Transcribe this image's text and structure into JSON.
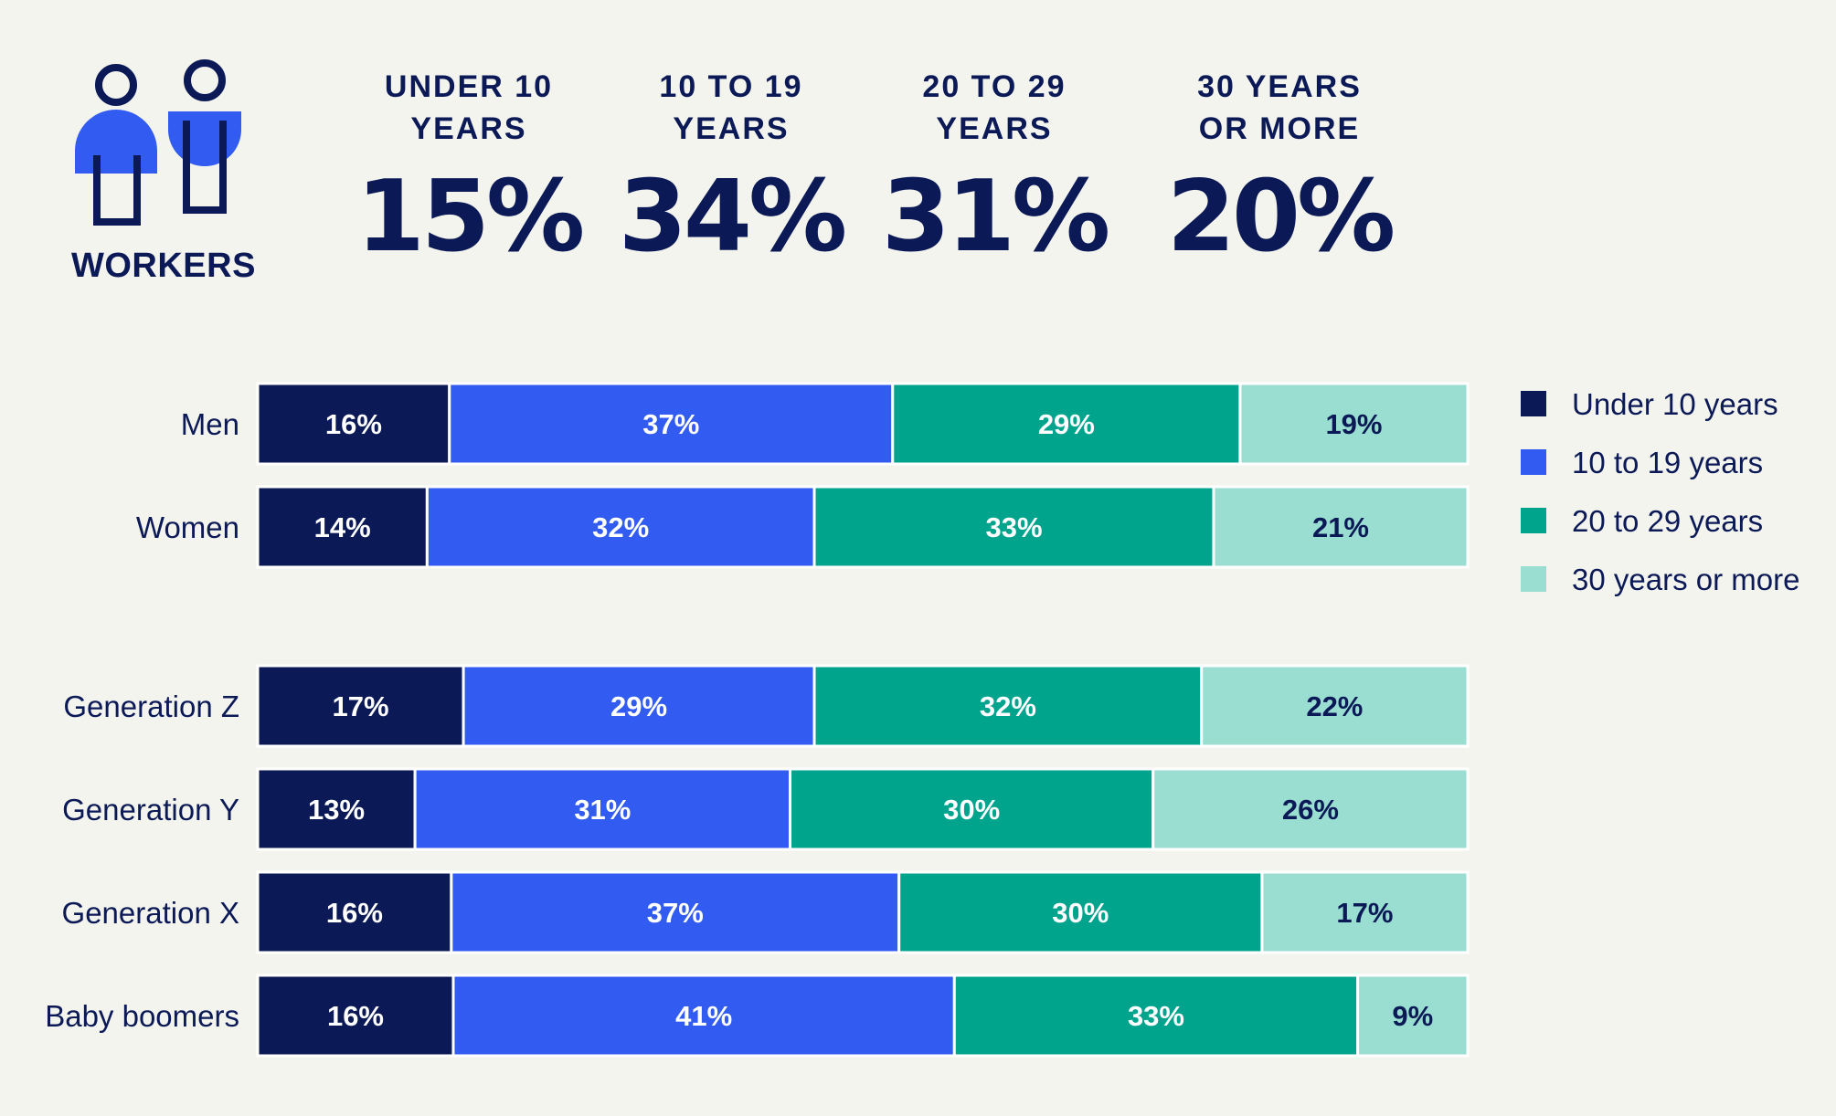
{
  "header": {
    "workers_label": "WORKERS",
    "stats": [
      {
        "label": "UNDER 10 YEARS",
        "value": "15%"
      },
      {
        "label": "10 TO 19 YEARS",
        "value": "34%"
      },
      {
        "label": "20 TO 29 YEARS",
        "value": "31%"
      },
      {
        "label": "30 YEARS OR MORE",
        "value": "20%"
      }
    ]
  },
  "legend": [
    {
      "label": "Under 10 years",
      "color": "#0b1a56"
    },
    {
      "label": "10 to 19 years",
      "color": "#315bf1"
    },
    {
      "label": "20 to 29 years",
      "color": "#00a38c"
    },
    {
      "label": "30 years or more",
      "color": "#99ded1"
    }
  ],
  "icons": {
    "men": "man-icon",
    "women": "woman-icon"
  },
  "chart_data": {
    "type": "bar",
    "orientation": "horizontal",
    "stacked": true,
    "normalized": true,
    "categories": [
      "Men",
      "Women",
      "Generation Z",
      "Generation Y",
      "Generation X",
      "Baby boomers"
    ],
    "series": [
      {
        "name": "Under 10 years",
        "values": [
          16,
          14,
          17,
          13,
          16,
          16
        ],
        "labels": [
          "16%",
          "14%",
          "17%",
          "13%",
          "16%",
          "16%"
        ]
      },
      {
        "name": "10 to 19 years",
        "values": [
          37,
          32,
          29,
          31,
          37,
          41
        ],
        "labels": [
          "37%",
          "32%",
          "29%",
          "31%",
          "37%",
          "41%"
        ]
      },
      {
        "name": "20 to 29 years",
        "values": [
          29,
          33,
          32,
          30,
          30,
          33
        ],
        "labels": [
          "29%",
          "33%",
          "32%",
          "30%",
          "30%",
          "33%"
        ]
      },
      {
        "name": "30 years or more",
        "values": [
          19,
          21,
          22,
          26,
          17,
          9
        ],
        "labels": [
          "19%",
          "21%",
          "22%",
          "26%",
          "17%",
          "9%"
        ]
      }
    ],
    "colors": [
      "#0b1a56",
      "#315bf1",
      "#00a38c",
      "#99ded1"
    ],
    "label_colors": [
      "#ffffff",
      "#ffffff",
      "#ffffff",
      "#0b1a56"
    ],
    "legend_position": "right",
    "grid": false
  }
}
